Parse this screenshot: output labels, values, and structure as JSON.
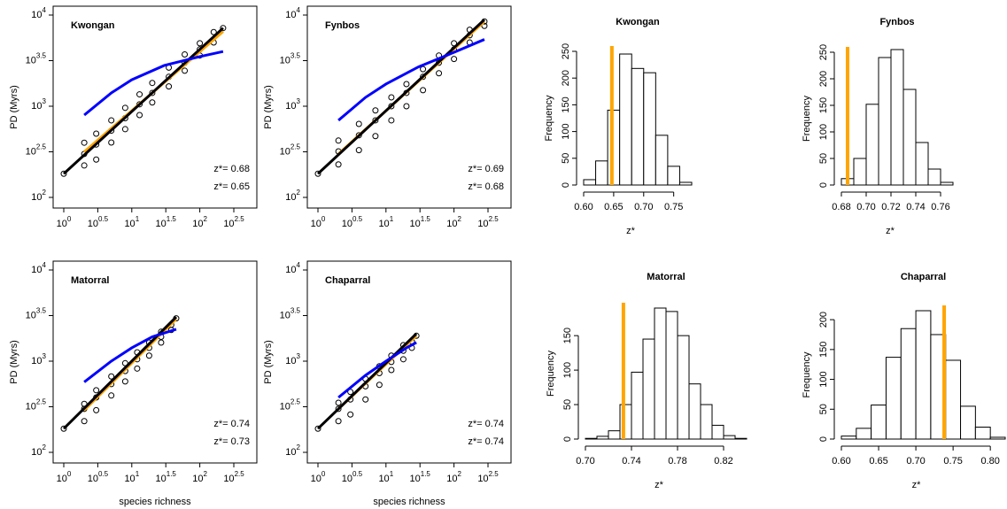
{
  "chart_data": [
    {
      "type": "scatter",
      "title": "Kwongan",
      "ylabel": "PD (Myrs)",
      "log_x": true,
      "log_y": true,
      "xlim": [
        1,
        316.23
      ],
      "ylim": [
        100,
        10000
      ],
      "xticks": [
        {
          "value": 1,
          "label": "10^0"
        },
        {
          "value": 3.1623,
          "label": "10^0.5"
        },
        {
          "value": 10,
          "label": "10^1"
        },
        {
          "value": 31.623,
          "label": "10^1.5"
        },
        {
          "value": 100,
          "label": "10^2"
        },
        {
          "value": 316.23,
          "label": "10^2.5"
        }
      ],
      "yticks": [
        {
          "value": 100,
          "label": "10^2"
        },
        {
          "value": 316.23,
          "label": "10^2.5"
        },
        {
          "value": 1000,
          "label": "10^3"
        },
        {
          "value": 3162.3,
          "label": "10^3.5"
        },
        {
          "value": 10000,
          "label": "10^4"
        }
      ],
      "series": [
        {
          "mode": "points",
          "color": "#000000",
          "x": [
            1,
            2,
            2,
            2,
            3,
            3,
            3,
            5,
            5,
            5,
            8,
            8,
            8,
            13,
            13,
            13,
            20,
            20,
            20,
            35,
            35,
            35,
            60,
            60,
            60,
            100,
            100,
            100,
            160,
            160,
            220
          ],
          "values": [
            182,
            224,
            300,
            398,
            260,
            380,
            500,
            400,
            540,
            700,
            560,
            740,
            960,
            800,
            1050,
            1350,
            1100,
            1400,
            1800,
            1650,
            2100,
            2650,
            2450,
            3000,
            3700,
            3600,
            4200,
            4900,
            5000,
            6500,
            7200
          ]
        },
        {
          "mode": "line",
          "color": "#ffa500",
          "x": [
            2,
            220
          ],
          "values": [
            316,
            6600
          ]
        },
        {
          "mode": "line",
          "color": "#000000",
          "x": [
            1,
            220
          ],
          "values": [
            182,
            7200
          ]
        },
        {
          "mode": "line",
          "color": "#0000ff",
          "x": [
            2,
            5,
            10,
            30,
            100,
            220
          ],
          "values": [
            800,
            1400,
            1950,
            2800,
            3500,
            3980
          ]
        }
      ],
      "annotations": [
        {
          "text": "z*= 0.68",
          "color": "#000000"
        },
        {
          "text": "z*= 0.65",
          "color": "#ffa500"
        }
      ]
    },
    {
      "type": "scatter",
      "title": "Fynbos",
      "ylabel": "PD (Myrs)",
      "log_x": true,
      "log_y": true,
      "xlim": [
        1,
        316.23
      ],
      "ylim": [
        100,
        10000
      ],
      "xticks": [
        {
          "value": 1,
          "label": "10^0"
        },
        {
          "value": 3.1623,
          "label": "10^0.5"
        },
        {
          "value": 10,
          "label": "10^1"
        },
        {
          "value": 31.623,
          "label": "10^1.5"
        },
        {
          "value": 100,
          "label": "10^2"
        },
        {
          "value": 316.23,
          "label": "10^2.5"
        }
      ],
      "yticks": [
        {
          "value": 100,
          "label": "10^2"
        },
        {
          "value": 316.23,
          "label": "10^2.5"
        },
        {
          "value": 1000,
          "label": "10^3"
        },
        {
          "value": 3162.3,
          "label": "10^3.5"
        },
        {
          "value": 10000,
          "label": "10^4"
        }
      ],
      "series": [
        {
          "mode": "points",
          "color": "#000000",
          "x": [
            1,
            2,
            2,
            2,
            4,
            4,
            4,
            7,
            7,
            7,
            12,
            12,
            12,
            20,
            20,
            20,
            35,
            35,
            35,
            60,
            60,
            60,
            100,
            100,
            100,
            170,
            170,
            170,
            280,
            280
          ],
          "values": [
            182,
            230,
            320,
            420,
            330,
            480,
            640,
            470,
            700,
            900,
            700,
            1000,
            1250,
            1000,
            1400,
            1750,
            1500,
            2100,
            2550,
            2300,
            3000,
            3600,
            3300,
            4200,
            4900,
            5000,
            6000,
            6900,
            7600,
            8500
          ]
        },
        {
          "mode": "line",
          "color": "#ffa500",
          "x": [
            2,
            280
          ],
          "values": [
            300,
            8500
          ]
        },
        {
          "mode": "line",
          "color": "#000000",
          "x": [
            1,
            280
          ],
          "values": [
            182,
            8900
          ]
        },
        {
          "mode": "line",
          "color": "#0000ff",
          "x": [
            2,
            5,
            10,
            30,
            100,
            280
          ],
          "values": [
            700,
            1250,
            1750,
            2700,
            3900,
            5400
          ]
        }
      ],
      "annotations": [
        {
          "text": "z*= 0.69",
          "color": "#000000"
        },
        {
          "text": "z*= 0.68",
          "color": "#ffa500"
        }
      ]
    },
    {
      "type": "histogram",
      "title": "Kwongan",
      "xlabel": "z*",
      "ylabel": "Frequency",
      "color": "#ffffff",
      "observed": 0.647,
      "observed_color": "#ffa500",
      "bins": [
        0.6,
        0.62,
        0.64,
        0.66,
        0.68,
        0.7,
        0.72,
        0.74,
        0.76,
        0.78
      ],
      "values": [
        10,
        45,
        140,
        245,
        218,
        210,
        93,
        35,
        5
      ],
      "xlim": [
        0.6,
        0.78
      ],
      "ylim": [
        0,
        250
      ],
      "xticks": [
        {
          "value": 0.6,
          "label": "0.60"
        },
        0.65,
        {
          "value": 0.7,
          "label": "0.70"
        },
        0.75
      ],
      "yticks": [
        0,
        50,
        100,
        150,
        200,
        250
      ]
    },
    {
      "type": "histogram",
      "title": "Fynbos",
      "xlabel": "z*",
      "ylabel": "Frequency",
      "color": "#ffffff",
      "observed": 0.685,
      "observed_color": "#ffa500",
      "bins": [
        0.68,
        0.69,
        0.7,
        0.71,
        0.72,
        0.73,
        0.74,
        0.75,
        0.76,
        0.77
      ],
      "values": [
        12,
        50,
        152,
        240,
        255,
        180,
        80,
        30,
        5
      ],
      "xlim": [
        0.68,
        0.77
      ],
      "ylim": [
        0,
        250
      ],
      "xticks": [
        0.68,
        {
          "value": 0.7,
          "label": "0.70"
        },
        0.72,
        0.74,
        0.76
      ],
      "yticks": [
        0,
        50,
        100,
        150,
        200,
        250
      ]
    },
    {
      "type": "scatter",
      "title": "Matorral",
      "ylabel": "PD (Myrs)",
      "xlabel": "species richness",
      "log_x": true,
      "log_y": true,
      "xlim": [
        1,
        316.23
      ],
      "ylim": [
        100,
        10000
      ],
      "xticks": [
        {
          "value": 1,
          "label": "10^0"
        },
        {
          "value": 3.1623,
          "label": "10^0.5"
        },
        {
          "value": 10,
          "label": "10^1"
        },
        {
          "value": 31.623,
          "label": "10^1.5"
        },
        {
          "value": 100,
          "label": "10^2"
        },
        {
          "value": 316.23,
          "label": "10^2.5"
        }
      ],
      "yticks": [
        {
          "value": 100,
          "label": "10^2"
        },
        {
          "value": 316.23,
          "label": "10^2.5"
        },
        {
          "value": 1000,
          "label": "10^3"
        },
        {
          "value": 3162.3,
          "label": "10^3.5"
        },
        {
          "value": 10000,
          "label": "10^4"
        }
      ],
      "series": [
        {
          "mode": "points",
          "color": "#000000",
          "x": [
            1,
            2,
            2,
            2,
            3,
            3,
            3,
            5,
            5,
            5,
            8,
            8,
            8,
            12,
            12,
            12,
            18,
            18,
            18,
            27,
            27,
            27,
            38,
            38,
            45
          ],
          "values": [
            182,
            220,
            300,
            340,
            290,
            400,
            480,
            420,
            560,
            680,
            600,
            780,
            950,
            830,
            1050,
            1250,
            1150,
            1400,
            1600,
            1600,
            1850,
            2100,
            2200,
            2500,
            2950
          ]
        },
        {
          "mode": "line",
          "color": "#ffa500",
          "x": [
            2,
            45
          ],
          "values": [
            290,
            2900
          ]
        },
        {
          "mode": "line",
          "color": "#000000",
          "x": [
            1,
            45
          ],
          "values": [
            182,
            3050
          ]
        },
        {
          "mode": "line",
          "color": "#0000ff",
          "x": [
            2,
            5,
            10,
            20,
            45
          ],
          "values": [
            590,
            1000,
            1400,
            1850,
            2240
          ]
        }
      ],
      "annotations": [
        {
          "text": "z*= 0.74",
          "color": "#000000"
        },
        {
          "text": "z*= 0.73",
          "color": "#ffa500"
        }
      ]
    },
    {
      "type": "scatter",
      "title": "Chaparral",
      "ylabel": "PD (Myrs)",
      "xlabel": "species richness",
      "log_x": true,
      "log_y": true,
      "xlim": [
        1,
        316.23
      ],
      "ylim": [
        100,
        10000
      ],
      "xticks": [
        {
          "value": 1,
          "label": "10^0"
        },
        {
          "value": 3.1623,
          "label": "10^0.5"
        },
        {
          "value": 10,
          "label": "10^1"
        },
        {
          "value": 31.623,
          "label": "10^1.5"
        },
        {
          "value": 100,
          "label": "10^2"
        },
        {
          "value": 316.23,
          "label": "10^2.5"
        }
      ],
      "yticks": [
        {
          "value": 100,
          "label": "10^2"
        },
        {
          "value": 316.23,
          "label": "10^2.5"
        },
        {
          "value": 1000,
          "label": "10^3"
        },
        {
          "value": 3162.3,
          "label": "10^3.5"
        },
        {
          "value": 10000,
          "label": "10^4"
        }
      ],
      "series": [
        {
          "mode": "points",
          "color": "#000000",
          "x": [
            1,
            2,
            2,
            2,
            3,
            3,
            3,
            5,
            5,
            5,
            8,
            8,
            8,
            12,
            12,
            12,
            18,
            18,
            18,
            24,
            24,
            28
          ],
          "values": [
            182,
            220,
            300,
            350,
            260,
            380,
            460,
            380,
            530,
            640,
            550,
            740,
            880,
            800,
            980,
            1150,
            1050,
            1300,
            1500,
            1400,
            1650,
            1900
          ]
        },
        {
          "mode": "line",
          "color": "#ffa500",
          "x": [
            2,
            28
          ],
          "values": [
            300,
            1900
          ]
        },
        {
          "mode": "line",
          "color": "#000000",
          "x": [
            1,
            28
          ],
          "values": [
            182,
            2000
          ]
        },
        {
          "mode": "line",
          "color": "#0000ff",
          "x": [
            2,
            5,
            10,
            20,
            28
          ],
          "values": [
            400,
            700,
            1000,
            1400,
            1600
          ]
        }
      ],
      "annotations": [
        {
          "text": "z*= 0.74",
          "color": "#000000"
        },
        {
          "text": "z*= 0.74",
          "color": "#ffa500"
        }
      ]
    },
    {
      "type": "histogram",
      "title": "Matorral",
      "xlabel": "z*",
      "ylabel": "Frequency",
      "color": "#ffffff",
      "observed": 0.733,
      "observed_color": "#ffa500",
      "bins": [
        0.7,
        0.71,
        0.72,
        0.73,
        0.74,
        0.75,
        0.76,
        0.77,
        0.78,
        0.79,
        0.8,
        0.81,
        0.82,
        0.83,
        0.84
      ],
      "values": [
        1,
        4,
        12,
        50,
        97,
        145,
        190,
        185,
        150,
        80,
        50,
        20,
        5,
        1
      ],
      "xlim": [
        0.7,
        0.84
      ],
      "ylim": [
        0,
        190
      ],
      "xticks": [
        {
          "value": 0.7,
          "label": "0.70"
        },
        0.74,
        0.78,
        0.82
      ],
      "yticks": [
        0,
        50,
        100,
        150
      ]
    },
    {
      "type": "histogram",
      "title": "Chaparral",
      "xlabel": "z*",
      "ylabel": "Frequency",
      "color": "#ffffff",
      "observed": 0.738,
      "observed_color": "#ffa500",
      "bins": [
        0.6,
        0.62,
        0.64,
        0.66,
        0.68,
        0.7,
        0.72,
        0.74,
        0.76,
        0.78,
        0.8,
        0.82
      ],
      "values": [
        5,
        18,
        57,
        137,
        185,
        215,
        175,
        132,
        55,
        20,
        3
      ],
      "xlim": [
        0.6,
        0.82
      ],
      "ylim": [
        0,
        215
      ],
      "xticks": [
        {
          "value": 0.6,
          "label": "0.60"
        },
        0.65,
        {
          "value": 0.7,
          "label": "0.70"
        },
        0.75,
        {
          "value": 0.8,
          "label": "0.80"
        }
      ],
      "yticks": [
        0,
        50,
        100,
        150,
        200
      ]
    }
  ]
}
